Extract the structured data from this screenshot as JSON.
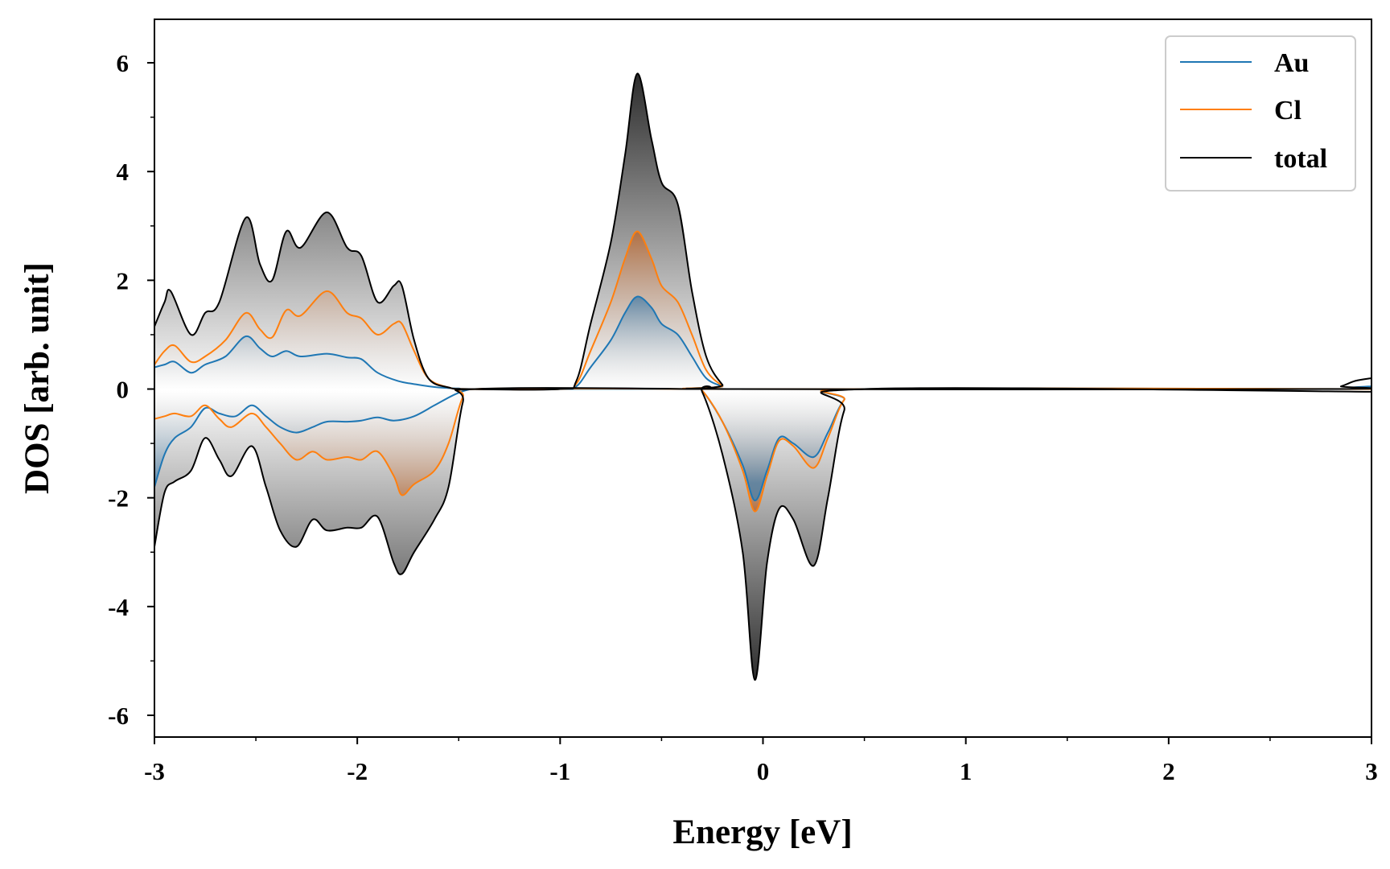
{
  "chart_data": {
    "type": "area",
    "xlabel": "Energy [eV]",
    "ylabel": "DOS [arb. unit]",
    "xlim": [
      -3,
      3
    ],
    "ylim": [
      -6.4,
      6.8
    ],
    "xticks": [
      -3,
      -2,
      -1,
      0,
      1,
      2,
      3
    ],
    "xtick_labels": [
      "-3",
      "-2",
      "-1",
      "0",
      "1",
      "2",
      "3"
    ],
    "yticks": [
      -6,
      -4,
      -2,
      0,
      2,
      4,
      6
    ],
    "ytick_labels": [
      "-6",
      "-4",
      "-2",
      "0",
      "2",
      "4",
      "6"
    ],
    "grid": false,
    "legend_position": "top-right",
    "series": [
      {
        "name": "Au",
        "color": "#1f77b4",
        "up": [
          [
            -3.0,
            0.4
          ],
          [
            -2.95,
            0.45
          ],
          [
            -2.9,
            0.5
          ],
          [
            -2.82,
            0.3
          ],
          [
            -2.75,
            0.45
          ],
          [
            -2.65,
            0.6
          ],
          [
            -2.55,
            0.97
          ],
          [
            -2.48,
            0.75
          ],
          [
            -2.42,
            0.6
          ],
          [
            -2.35,
            0.7
          ],
          [
            -2.28,
            0.6
          ],
          [
            -2.15,
            0.65
          ],
          [
            -2.05,
            0.58
          ],
          [
            -1.98,
            0.55
          ],
          [
            -1.9,
            0.3
          ],
          [
            -1.8,
            0.15
          ],
          [
            -1.7,
            0.08
          ],
          [
            -1.6,
            0.03
          ],
          [
            -1.5,
            0.01
          ],
          [
            -1.45,
            0.0
          ],
          [
            -1.0,
            0.0
          ],
          [
            -0.92,
            0.05
          ],
          [
            -0.85,
            0.4
          ],
          [
            -0.75,
            0.9
          ],
          [
            -0.68,
            1.4
          ],
          [
            -0.62,
            1.7
          ],
          [
            -0.55,
            1.5
          ],
          [
            -0.5,
            1.2
          ],
          [
            -0.42,
            1.0
          ],
          [
            -0.35,
            0.6
          ],
          [
            -0.28,
            0.2
          ],
          [
            -0.2,
            0.05
          ],
          [
            -0.15,
            0.0
          ],
          [
            2.8,
            0.0
          ],
          [
            2.9,
            0.03
          ],
          [
            3.0,
            0.05
          ]
        ],
        "down": [
          [
            -3.0,
            -1.8
          ],
          [
            -2.95,
            -1.2
          ],
          [
            -2.9,
            -0.9
          ],
          [
            -2.82,
            -0.7
          ],
          [
            -2.75,
            -0.35
          ],
          [
            -2.68,
            -0.45
          ],
          [
            -2.6,
            -0.5
          ],
          [
            -2.52,
            -0.3
          ],
          [
            -2.45,
            -0.5
          ],
          [
            -2.38,
            -0.7
          ],
          [
            -2.3,
            -0.8
          ],
          [
            -2.22,
            -0.7
          ],
          [
            -2.15,
            -0.6
          ],
          [
            -2.05,
            -0.6
          ],
          [
            -1.98,
            -0.58
          ],
          [
            -1.9,
            -0.52
          ],
          [
            -1.82,
            -0.58
          ],
          [
            -1.72,
            -0.5
          ],
          [
            -1.62,
            -0.3
          ],
          [
            -1.52,
            -0.1
          ],
          [
            -1.45,
            -0.01
          ],
          [
            -1.4,
            0.0
          ],
          [
            -0.35,
            0.0
          ],
          [
            -0.3,
            -0.03
          ],
          [
            -0.2,
            -0.6
          ],
          [
            -0.1,
            -1.4
          ],
          [
            -0.04,
            -2.05
          ],
          [
            0.02,
            -1.5
          ],
          [
            0.08,
            -0.9
          ],
          [
            0.15,
            -1.0
          ],
          [
            0.25,
            -1.25
          ],
          [
            0.32,
            -0.8
          ],
          [
            0.4,
            -0.2
          ],
          [
            0.5,
            0.0
          ],
          [
            3.0,
            0.0
          ]
        ]
      },
      {
        "name": "Cl",
        "color": "#ff7f0e",
        "up": [
          [
            -3.0,
            0.45
          ],
          [
            -2.95,
            0.7
          ],
          [
            -2.9,
            0.8
          ],
          [
            -2.82,
            0.5
          ],
          [
            -2.75,
            0.6
          ],
          [
            -2.65,
            0.9
          ],
          [
            -2.55,
            1.4
          ],
          [
            -2.48,
            1.1
          ],
          [
            -2.42,
            0.95
          ],
          [
            -2.35,
            1.45
          ],
          [
            -2.28,
            1.35
          ],
          [
            -2.15,
            1.8
          ],
          [
            -2.05,
            1.4
          ],
          [
            -1.98,
            1.3
          ],
          [
            -1.9,
            1.0
          ],
          [
            -1.82,
            1.2
          ],
          [
            -1.78,
            1.2
          ],
          [
            -1.72,
            0.7
          ],
          [
            -1.65,
            0.2
          ],
          [
            -1.55,
            0.03
          ],
          [
            -1.45,
            0.0
          ],
          [
            -1.0,
            0.0
          ],
          [
            -0.92,
            0.1
          ],
          [
            -0.85,
            0.7
          ],
          [
            -0.75,
            1.6
          ],
          [
            -0.68,
            2.4
          ],
          [
            -0.62,
            2.9
          ],
          [
            -0.55,
            2.4
          ],
          [
            -0.5,
            1.9
          ],
          [
            -0.42,
            1.6
          ],
          [
            -0.35,
            1.0
          ],
          [
            -0.28,
            0.35
          ],
          [
            -0.2,
            0.06
          ],
          [
            -0.15,
            0.0
          ],
          [
            3.0,
            0.0
          ]
        ],
        "down": [
          [
            -3.0,
            -0.55
          ],
          [
            -2.95,
            -0.5
          ],
          [
            -2.9,
            -0.45
          ],
          [
            -2.82,
            -0.5
          ],
          [
            -2.75,
            -0.3
          ],
          [
            -2.68,
            -0.55
          ],
          [
            -2.62,
            -0.7
          ],
          [
            -2.52,
            -0.45
          ],
          [
            -2.45,
            -0.7
          ],
          [
            -2.38,
            -1.0
          ],
          [
            -2.3,
            -1.3
          ],
          [
            -2.22,
            -1.15
          ],
          [
            -2.15,
            -1.3
          ],
          [
            -2.05,
            -1.25
          ],
          [
            -1.98,
            -1.3
          ],
          [
            -1.9,
            -1.15
          ],
          [
            -1.82,
            -1.6
          ],
          [
            -1.78,
            -1.95
          ],
          [
            -1.72,
            -1.75
          ],
          [
            -1.62,
            -1.5
          ],
          [
            -1.55,
            -1.0
          ],
          [
            -1.48,
            -0.15
          ],
          [
            -1.42,
            0.0
          ],
          [
            -0.35,
            0.0
          ],
          [
            -0.3,
            -0.03
          ],
          [
            -0.2,
            -0.6
          ],
          [
            -0.1,
            -1.5
          ],
          [
            -0.04,
            -2.25
          ],
          [
            0.02,
            -1.6
          ],
          [
            0.08,
            -0.95
          ],
          [
            0.15,
            -1.05
          ],
          [
            0.25,
            -1.45
          ],
          [
            0.32,
            -0.9
          ],
          [
            0.4,
            -0.2
          ],
          [
            0.5,
            0.0
          ],
          [
            3.0,
            0.0
          ]
        ]
      },
      {
        "name": "total",
        "color": "#000000",
        "up": [
          [
            -3.0,
            1.15
          ],
          [
            -2.95,
            1.6
          ],
          [
            -2.92,
            1.8
          ],
          [
            -2.82,
            1.0
          ],
          [
            -2.75,
            1.4
          ],
          [
            -2.68,
            1.6
          ],
          [
            -2.55,
            3.15
          ],
          [
            -2.48,
            2.3
          ],
          [
            -2.42,
            2.0
          ],
          [
            -2.35,
            2.9
          ],
          [
            -2.28,
            2.6
          ],
          [
            -2.15,
            3.25
          ],
          [
            -2.05,
            2.6
          ],
          [
            -1.98,
            2.45
          ],
          [
            -1.9,
            1.6
          ],
          [
            -1.82,
            1.9
          ],
          [
            -1.78,
            1.9
          ],
          [
            -1.72,
            0.9
          ],
          [
            -1.65,
            0.2
          ],
          [
            -1.55,
            0.03
          ],
          [
            -1.45,
            0.0
          ],
          [
            -1.0,
            0.0
          ],
          [
            -0.92,
            0.15
          ],
          [
            -0.85,
            1.2
          ],
          [
            -0.75,
            2.7
          ],
          [
            -0.68,
            4.3
          ],
          [
            -0.62,
            5.8
          ],
          [
            -0.55,
            4.6
          ],
          [
            -0.5,
            3.8
          ],
          [
            -0.42,
            3.4
          ],
          [
            -0.35,
            1.8
          ],
          [
            -0.28,
            0.6
          ],
          [
            -0.2,
            0.08
          ],
          [
            -0.15,
            0.0
          ],
          [
            2.78,
            0.0
          ],
          [
            2.85,
            0.05
          ],
          [
            2.92,
            0.15
          ],
          [
            3.0,
            0.2
          ]
        ],
        "down": [
          [
            -3.0,
            -2.9
          ],
          [
            -2.95,
            -1.9
          ],
          [
            -2.9,
            -1.7
          ],
          [
            -2.82,
            -1.5
          ],
          [
            -2.75,
            -0.9
          ],
          [
            -2.68,
            -1.3
          ],
          [
            -2.62,
            -1.6
          ],
          [
            -2.52,
            -1.05
          ],
          [
            -2.45,
            -1.8
          ],
          [
            -2.38,
            -2.6
          ],
          [
            -2.3,
            -2.9
          ],
          [
            -2.22,
            -2.4
          ],
          [
            -2.15,
            -2.6
          ],
          [
            -2.05,
            -2.55
          ],
          [
            -1.98,
            -2.55
          ],
          [
            -1.9,
            -2.35
          ],
          [
            -1.82,
            -3.2
          ],
          [
            -1.78,
            -3.4
          ],
          [
            -1.72,
            -3.0
          ],
          [
            -1.62,
            -2.4
          ],
          [
            -1.55,
            -1.8
          ],
          [
            -1.48,
            -0.25
          ],
          [
            -1.42,
            0.0
          ],
          [
            -0.35,
            0.0
          ],
          [
            -0.3,
            -0.05
          ],
          [
            -0.2,
            -1.2
          ],
          [
            -0.1,
            -3.0
          ],
          [
            -0.04,
            -5.35
          ],
          [
            0.02,
            -3.2
          ],
          [
            0.08,
            -2.2
          ],
          [
            0.15,
            -2.4
          ],
          [
            0.25,
            -3.25
          ],
          [
            0.32,
            -2.0
          ],
          [
            0.4,
            -0.4
          ],
          [
            0.5,
            0.0
          ],
          [
            3.0,
            -0.05
          ]
        ]
      }
    ]
  }
}
